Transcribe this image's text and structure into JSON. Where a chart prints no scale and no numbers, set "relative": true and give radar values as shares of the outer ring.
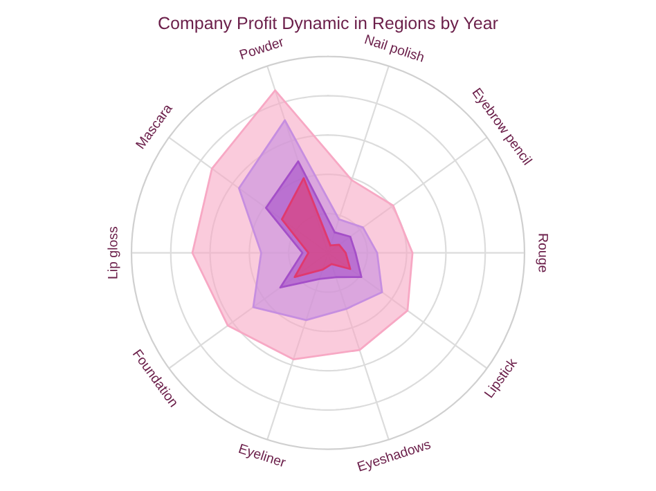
{
  "chart_data": {
    "type": "radar",
    "title": "Company Profit Dynamic in Regions by Year",
    "categories": [
      "Nail polish",
      "Eyebrow pencil",
      "Rouge",
      "Lipstick",
      "Eyeshadows",
      "Eyeliner",
      "Foundation",
      "Lip gloss",
      "Mascara",
      "Powder"
    ],
    "relative": true,
    "grid": true,
    "legend": false,
    "series": [
      {
        "color": "#f7a8c4",
        "values": [
          0.39,
          0.41,
          0.43,
          0.5,
          0.52,
          0.57,
          0.63,
          0.69,
          0.73,
          0.87
        ]
      },
      {
        "color": "#c68ee0",
        "values": [
          0.18,
          0.22,
          0.25,
          0.34,
          0.3,
          0.36,
          0.47,
          0.34,
          0.56,
          0.71
        ]
      },
      {
        "color": "#a44fc8",
        "values": [
          0.11,
          0.14,
          0.14,
          0.21,
          0.13,
          0.14,
          0.3,
          0.13,
          0.39,
          0.49
        ]
      },
      {
        "color": "#e0396e",
        "values": [
          0.04,
          0.07,
          0.09,
          0.14,
          0.06,
          0.09,
          0.21,
          0.1,
          0.29,
          0.4
        ]
      }
    ]
  }
}
